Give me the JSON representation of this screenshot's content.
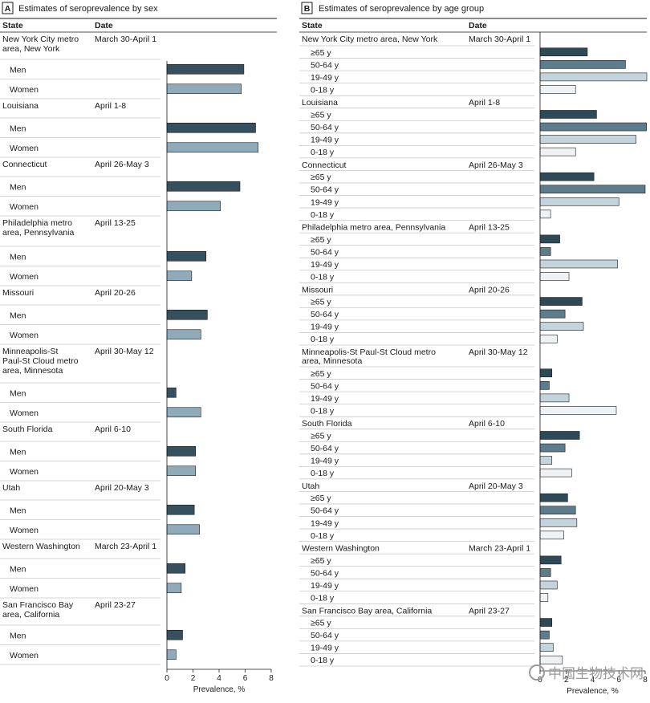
{
  "panels": [
    {
      "id": "A",
      "badge": "A",
      "title": "Estimates of seroprevalence by sex",
      "col_state": "State",
      "col_date": "Date",
      "xlabel": "Prevalence, %",
      "xlim": [
        0,
        8
      ],
      "ticks": [
        "0",
        "2",
        "4",
        "6",
        "8"
      ]
    },
    {
      "id": "B",
      "badge": "B",
      "title": "Estimates of seroprevalence by age group",
      "col_state": "State",
      "col_date": "Date",
      "xlabel": "Prevalence, %",
      "xlim": [
        0,
        8
      ],
      "ticks": [
        "0",
        "2",
        "4",
        "6",
        "8"
      ]
    }
  ],
  "chart_data": [
    {
      "type": "bar",
      "orientation": "horizontal",
      "title": "Estimates of seroprevalence by sex",
      "xlabel": "Prevalence, %",
      "xlim": [
        0,
        8
      ],
      "grid": false,
      "categories": [
        "Men",
        "Women"
      ],
      "colors": {
        "Men": "#36505f",
        "Women": "#8fabba"
      },
      "groups": [
        {
          "state": "New York City metro area, New York",
          "date": "March 30-April 1",
          "values": [
            5.9,
            5.7
          ]
        },
        {
          "state": "Louisiana",
          "date": "April 1-8",
          "values": [
            6.8,
            7.0
          ]
        },
        {
          "state": "Connecticut",
          "date": "April 26-May 3",
          "values": [
            5.6,
            4.1
          ]
        },
        {
          "state": "Philadelphia metro area, Pennsylvania",
          "date": "April 13-25",
          "values": [
            3.0,
            1.9
          ]
        },
        {
          "state": "Missouri",
          "date": "April 20-26",
          "values": [
            3.1,
            2.6
          ]
        },
        {
          "state": "Minneapolis-St Paul-St Cloud metro area, Minnesota",
          "date": "April 30-May 12",
          "values": [
            0.7,
            2.6
          ]
        },
        {
          "state": "South Florida",
          "date": "April 6-10",
          "values": [
            2.2,
            2.2
          ]
        },
        {
          "state": "Utah",
          "date": "April 20-May 3",
          "values": [
            2.1,
            2.5
          ]
        },
        {
          "state": "Western Washington",
          "date": "March 23-April 1",
          "values": [
            1.4,
            1.1
          ]
        },
        {
          "state": "San Francisco Bay area, California",
          "date": "April 23-27",
          "values": [
            1.2,
            0.7
          ]
        }
      ]
    },
    {
      "type": "bar",
      "orientation": "horizontal",
      "title": "Estimates of seroprevalence by age group",
      "xlabel": "Prevalence, %",
      "xlim": [
        0,
        8
      ],
      "grid": false,
      "categories": [
        "≥65 y",
        "50-64 y",
        "19-49 y",
        "0-18 y"
      ],
      "colors": {
        "≥65 y": "#2f4a57",
        "50-64 y": "#5d7d8c",
        "19-49 y": "#c3d4dc",
        "0-18 y": "#eef2f4"
      },
      "groups": [
        {
          "state": "New York City metro area, New York",
          "date": "March 30-April 1",
          "values": [
            3.6,
            6.5,
            8.2,
            2.7
          ]
        },
        {
          "state": "Louisiana",
          "date": "April 1-8",
          "values": [
            4.3,
            8.1,
            7.3,
            2.7
          ]
        },
        {
          "state": "Connecticut",
          "date": "April 26-May 3",
          "values": [
            4.1,
            8.0,
            6.0,
            0.8
          ]
        },
        {
          "state": "Philadelphia metro area, Pennsylvania",
          "date": "April 13-25",
          "values": [
            1.5,
            0.8,
            5.9,
            2.2
          ]
        },
        {
          "state": "Missouri",
          "date": "April 20-26",
          "values": [
            3.2,
            1.9,
            3.3,
            1.3
          ]
        },
        {
          "state": "Minneapolis-St Paul-St Cloud metro area, Minnesota",
          "date": "April 30-May 12",
          "values": [
            0.9,
            0.7,
            2.2,
            5.8
          ]
        },
        {
          "state": "South Florida",
          "date": "April 6-10",
          "values": [
            3.0,
            1.9,
            0.9,
            2.4
          ]
        },
        {
          "state": "Utah",
          "date": "April 20-May 3",
          "values": [
            2.1,
            2.7,
            2.8,
            1.8
          ]
        },
        {
          "state": "Western Washington",
          "date": "March 23-April 1",
          "values": [
            1.6,
            0.8,
            1.3,
            0.6
          ]
        },
        {
          "state": "San Francisco Bay area, California",
          "date": "April 23-27",
          "values": [
            0.9,
            0.7,
            1.0,
            1.7
          ]
        }
      ]
    }
  ],
  "watermark": {
    "text": "中国生物技术网"
  }
}
